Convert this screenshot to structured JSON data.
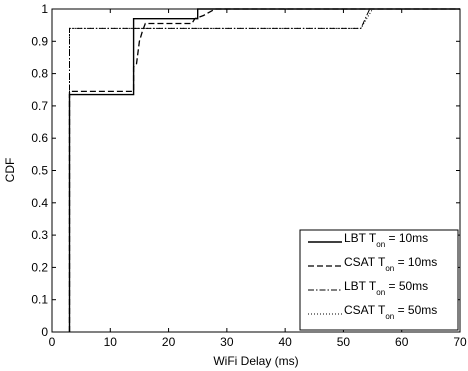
{
  "chart_data": {
    "type": "line",
    "title": "",
    "xlabel": "WiFi Delay (ms)",
    "ylabel": "CDF",
    "xlim": [
      0,
      70
    ],
    "ylim": [
      0,
      1
    ],
    "x_ticks": [
      0,
      10,
      20,
      30,
      40,
      50,
      60,
      70
    ],
    "y_ticks": [
      0,
      0.1,
      0.2,
      0.3,
      0.4,
      0.5,
      0.6,
      0.7,
      0.8,
      0.9,
      1
    ],
    "x_tick_labels": [
      "0",
      "10",
      "20",
      "30",
      "40",
      "50",
      "60",
      "70"
    ],
    "y_tick_labels": [
      "0",
      "0.1",
      "0.2",
      "0.3",
      "0.4",
      "0.5",
      "0.6",
      "0.7",
      "0.8",
      "0.9",
      "1"
    ],
    "grid": false,
    "legend_position": "bottom-right",
    "series": [
      {
        "name": "LBT T_on = 10ms",
        "legend_main": "LBT T",
        "legend_sub": "on",
        "legend_rest": " = 10ms",
        "dash": "solid",
        "x": [
          3,
          3,
          14,
          14,
          25,
          25,
          70
        ],
        "y": [
          0,
          0.735,
          0.735,
          0.97,
          0.97,
          1,
          1
        ]
      },
      {
        "name": "CSAT T_on = 10ms",
        "legend_main": "CSAT T",
        "legend_sub": "on",
        "legend_rest": " = 10ms",
        "dash": "dashed",
        "x": [
          3,
          3,
          14,
          14,
          14.5,
          15,
          15.5,
          16,
          24,
          24.5,
          26,
          28,
          70
        ],
        "y": [
          0,
          0.745,
          0.745,
          0.82,
          0.83,
          0.9,
          0.93,
          0.955,
          0.955,
          0.97,
          0.98,
          1,
          1
        ]
      },
      {
        "name": "LBT T_on = 50ms",
        "legend_main": "LBT T",
        "legend_sub": "on",
        "legend_rest": " = 50ms",
        "dash": "dashdot",
        "x": [
          3,
          3,
          53,
          54,
          54.5,
          70
        ],
        "y": [
          0,
          0.94,
          0.94,
          0.98,
          1,
          1
        ]
      },
      {
        "name": "CSAT T_on = 50ms",
        "legend_main": "CSAT T",
        "legend_sub": "on",
        "legend_rest": " = 50ms",
        "dash": "dotted",
        "x": [
          3,
          3,
          53,
          54,
          55,
          70
        ],
        "y": [
          0,
          0.94,
          0.94,
          0.97,
          1,
          1
        ]
      }
    ]
  }
}
